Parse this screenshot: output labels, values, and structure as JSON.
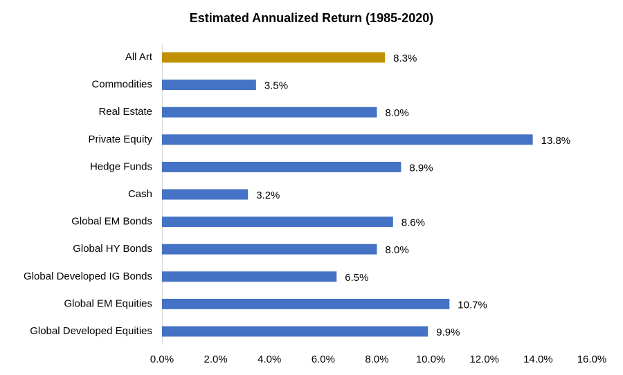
{
  "chart_data": {
    "type": "hbar",
    "title": "Estimated Annualized Return (1985-2020)",
    "categories": [
      "All Art",
      "Commodities",
      "Real Estate",
      "Private Equity",
      "Hedge Funds",
      "Cash",
      "Global EM Bonds",
      "Global HY Bonds",
      "Global Developed IG Bonds",
      "Global EM Equities",
      "Global Developed Equities"
    ],
    "values": [
      8.3,
      3.5,
      8.0,
      13.8,
      8.9,
      3.2,
      8.6,
      8.0,
      6.5,
      10.7,
      9.9
    ],
    "value_labels": [
      "8.3%",
      "3.5%",
      "8.0%",
      "13.8%",
      "8.9%",
      "3.2%",
      "8.6%",
      "8.0%",
      "6.5%",
      "10.7%",
      "9.9%"
    ],
    "colors": [
      "#bf9000",
      "#4472c4",
      "#4472c4",
      "#4472c4",
      "#4472c4",
      "#4472c4",
      "#4472c4",
      "#4472c4",
      "#4472c4",
      "#4472c4",
      "#4472c4"
    ],
    "xlim": [
      0,
      16
    ],
    "xticks": [
      {
        "value": 0,
        "label": "0.0%"
      },
      {
        "value": 2,
        "label": "2.0%"
      },
      {
        "value": 4,
        "label": "4.0%"
      },
      {
        "value": 6,
        "label": "6.0%"
      },
      {
        "value": 8,
        "label": "8.0%"
      },
      {
        "value": 10,
        "label": "10.0%"
      },
      {
        "value": 12,
        "label": "12.0%"
      },
      {
        "value": 14,
        "label": "14.0%"
      },
      {
        "value": 16,
        "label": "16.0%"
      }
    ],
    "grid": false
  }
}
